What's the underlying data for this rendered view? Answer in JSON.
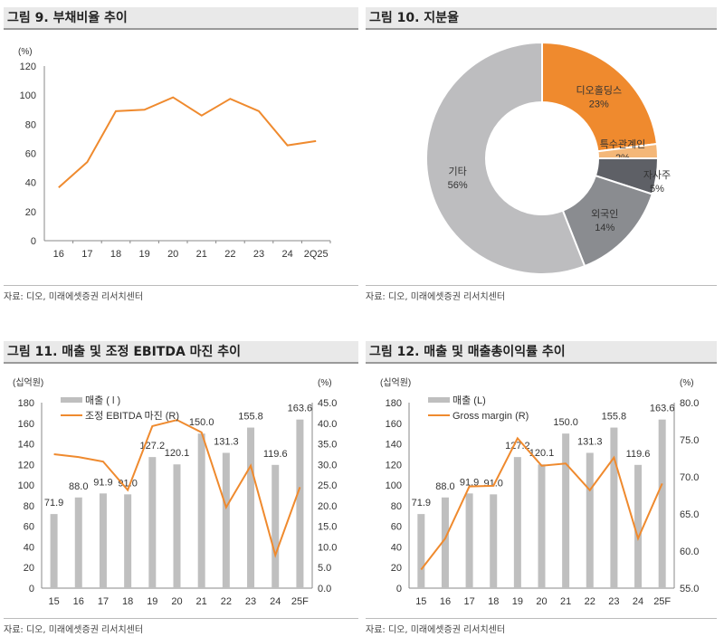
{
  "colors": {
    "orange": "#EF8A2E",
    "bar": "#BFBFBF",
    "header_bg": "#E9E9E9"
  },
  "source": "자료: 디오, 미래에셋증권 리서치센터",
  "chart_data": [
    {
      "title": "그림 9. 부채비율 추이",
      "type": "line",
      "ylabel": "(%)",
      "categories": [
        "16",
        "17",
        "18",
        "19",
        "20",
        "21",
        "22",
        "23",
        "24",
        "2Q25"
      ],
      "values": [
        36.5,
        54,
        89,
        90,
        98.5,
        86,
        97.5,
        89,
        65.5,
        68.5
      ],
      "ylim": [
        0,
        120
      ],
      "yticks": [
        "0",
        "20",
        "40",
        "60",
        "80",
        "100",
        "120"
      ],
      "grid": false
    },
    {
      "title": "그림 10. 지분율",
      "type": "pie",
      "donut": true,
      "slices": [
        {
          "label": "디오홀딩스",
          "value": 23,
          "text": "23%",
          "color": "#EF8A2E"
        },
        {
          "label": "특수관계인",
          "value": 2,
          "text": "2%",
          "color": "#F4B778"
        },
        {
          "label": "자사주",
          "value": 5,
          "text": "5%",
          "color": "#5E6066"
        },
        {
          "label": "외국인",
          "value": 14,
          "text": "14%",
          "color": "#8A8C90"
        },
        {
          "label": "기타",
          "value": 56,
          "text": "56%",
          "color": "#BDBDBF"
        }
      ]
    },
    {
      "title": "그림 11. 매출 및 조정 EBITDA 마진 추이",
      "type": "bar+line",
      "ylabel_left": "(십억원)",
      "ylabel_right": "(%)",
      "categories": [
        "15",
        "16",
        "17",
        "18",
        "19",
        "20",
        "21",
        "22",
        "23",
        "24",
        "25F"
      ],
      "series": [
        {
          "name": "매출 ( l )",
          "type": "bar",
          "axis": "left",
          "values": [
            71.9,
            88.0,
            91.9,
            91.0,
            127.2,
            120.1,
            150.0,
            131.3,
            155.8,
            119.6,
            163.6
          ],
          "labels": [
            "71.9",
            "88.0",
            "91.9",
            "91.0",
            "127.2",
            "120.1",
            "150.0",
            "131.3",
            "155.8",
            "119.6",
            "163.6"
          ]
        },
        {
          "name": "조정 EBITDA 마진 (R)",
          "type": "line",
          "axis": "right",
          "values": [
            32.5,
            31.8,
            30.7,
            23.8,
            39.3,
            40.8,
            37.8,
            19.6,
            29.7,
            8.0,
            24.5
          ]
        }
      ],
      "ylim_left": [
        0,
        180
      ],
      "yticks_left": [
        "0",
        "20",
        "40",
        "60",
        "80",
        "100",
        "120",
        "140",
        "160",
        "180"
      ],
      "ylim_right": [
        0,
        45
      ],
      "yticks_right": [
        "0.0",
        "5.0",
        "10.0",
        "15.0",
        "20.0",
        "25.0",
        "30.0",
        "35.0",
        "40.0",
        "45.0"
      ],
      "legend": "top-left"
    },
    {
      "title": "그림 12. 매출 및 매출총이익률 추이",
      "type": "bar+line",
      "ylabel_left": "(십억원)",
      "ylabel_right": "(%)",
      "categories": [
        "15",
        "16",
        "17",
        "18",
        "19",
        "20",
        "21",
        "22",
        "23",
        "24",
        "25F"
      ],
      "series": [
        {
          "name": "매출 (L)",
          "type": "bar",
          "axis": "left",
          "values": [
            71.9,
            88.0,
            91.9,
            91.0,
            127.2,
            120.1,
            150.0,
            131.3,
            155.8,
            119.6,
            163.6
          ],
          "labels": [
            "71.9",
            "88.0",
            "91.9",
            "91.0",
            "127.2",
            "120.1",
            "150.0",
            "131.3",
            "155.8",
            "119.6",
            "163.6"
          ]
        },
        {
          "name": "Gross margin (R)",
          "type": "line",
          "axis": "right",
          "values": [
            57.5,
            61.7,
            68.7,
            68.8,
            75.2,
            71.5,
            71.8,
            68.2,
            72.6,
            61.7,
            69.1
          ]
        }
      ],
      "ylim_left": [
        0,
        180
      ],
      "yticks_left": [
        "0",
        "20",
        "40",
        "60",
        "80",
        "100",
        "120",
        "140",
        "160",
        "180"
      ],
      "ylim_right": [
        55,
        80
      ],
      "yticks_right": [
        "55.0",
        "60.0",
        "65.0",
        "70.0",
        "75.0",
        "80.0"
      ],
      "legend": "top-left"
    }
  ]
}
